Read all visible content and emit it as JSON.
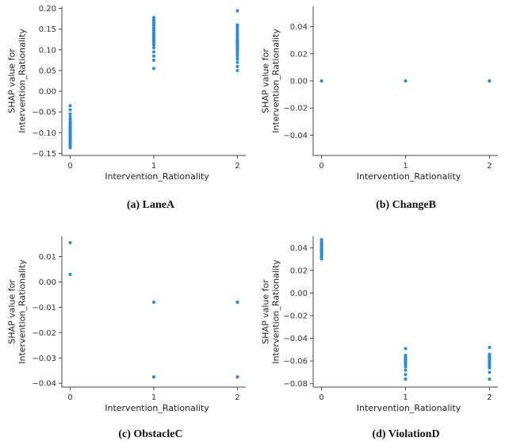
{
  "point_color": "#2b8cd6",
  "chart_data": [
    {
      "type": "scatter",
      "caption": "(a) LaneA",
      "xlabel": "Intervention_Rationality",
      "ylabel_lines": [
        "SHAP value for",
        "Intervention_Rationality"
      ],
      "xticks": [
        0,
        1,
        2
      ],
      "xlim": [
        -0.1,
        2.1
      ],
      "yticks": [
        -0.15,
        -0.1,
        -0.05,
        0.0,
        0.05,
        0.1,
        0.15,
        0.2
      ],
      "ytick_labels": [
        "−0.15",
        "−0.10",
        "−0.05",
        "0.00",
        "0.05",
        "0.10",
        "0.15",
        "0.20"
      ],
      "ylim": [
        -0.155,
        0.205
      ],
      "points": [
        {
          "x": 0,
          "y": [
            -0.035,
            -0.045,
            -0.055,
            -0.062,
            -0.068,
            -0.072,
            -0.076,
            -0.08,
            -0.083,
            -0.086,
            -0.089,
            -0.092,
            -0.095,
            -0.098,
            -0.1,
            -0.103,
            -0.106,
            -0.109,
            -0.112,
            -0.115,
            -0.118,
            -0.121,
            -0.124,
            -0.127,
            -0.13,
            -0.133,
            -0.136
          ]
        },
        {
          "x": 1,
          "y": [
            0.055,
            0.075,
            0.085,
            0.095,
            0.105,
            0.112,
            0.118,
            0.122,
            0.126,
            0.13,
            0.134,
            0.138,
            0.142,
            0.147,
            0.152,
            0.158,
            0.163,
            0.168,
            0.172,
            0.178
          ]
        },
        {
          "x": 2,
          "y": [
            0.05,
            0.06,
            0.07,
            0.078,
            0.085,
            0.09,
            0.095,
            0.1,
            0.104,
            0.108,
            0.112,
            0.116,
            0.12,
            0.124,
            0.128,
            0.132,
            0.136,
            0.14,
            0.145,
            0.15,
            0.155,
            0.16,
            0.194
          ]
        }
      ]
    },
    {
      "type": "scatter",
      "caption": "(b) ChangeB",
      "xlabel": "Intervention_Rationality",
      "ylabel_lines": [
        "SHAP value for",
        "Intervention_Rationality"
      ],
      "xticks": [
        0,
        1,
        2
      ],
      "xlim": [
        -0.1,
        2.1
      ],
      "yticks": [
        -0.04,
        -0.02,
        0.0,
        0.02,
        0.04
      ],
      "ytick_labels": [
        "−0.04",
        "−0.02",
        "0.00",
        "0.02",
        "0.04"
      ],
      "ylim": [
        -0.055,
        0.055
      ],
      "points": [
        {
          "x": 0,
          "y": [
            0.0
          ]
        },
        {
          "x": 1,
          "y": [
            0.0
          ]
        },
        {
          "x": 2,
          "y": [
            0.0
          ]
        }
      ]
    },
    {
      "type": "scatter",
      "caption": "(c) ObstacleC",
      "xlabel": "Intervention_Rationality",
      "ylabel_lines": [
        "SHAP value for",
        "Intervention_Rationality"
      ],
      "xticks": [
        0,
        1,
        2
      ],
      "xlim": [
        -0.1,
        2.1
      ],
      "yticks": [
        -0.04,
        -0.03,
        -0.02,
        -0.01,
        0.0,
        0.01
      ],
      "ytick_labels": [
        "−0.04",
        "−0.03",
        "−0.02",
        "−0.01",
        "0.00",
        "0.01"
      ],
      "ylim": [
        -0.0415,
        0.018
      ],
      "points": [
        {
          "x": 0,
          "y": [
            0.0155,
            0.003
          ]
        },
        {
          "x": 1,
          "y": [
            -0.008,
            -0.0375
          ]
        },
        {
          "x": 2,
          "y": [
            -0.008,
            -0.0375
          ]
        }
      ]
    },
    {
      "type": "scatter",
      "caption": "(d) ViolationD",
      "xlabel": "Intervention_Rationality",
      "ylabel_lines": [
        "SHAP value for",
        "Intervention_Rationality"
      ],
      "xticks": [
        0,
        1,
        2
      ],
      "xlim": [
        -0.1,
        2.1
      ],
      "yticks": [
        -0.08,
        -0.06,
        -0.04,
        -0.02,
        0.0,
        0.02,
        0.04
      ],
      "ytick_labels": [
        "−0.08",
        "−0.06",
        "−0.04",
        "−0.02",
        "0.00",
        "0.02",
        "0.04"
      ],
      "ylim": [
        -0.083,
        0.05
      ],
      "points": [
        {
          "x": 0,
          "y": [
            0.03,
            0.032,
            0.034,
            0.035,
            0.036,
            0.037,
            0.038,
            0.039,
            0.04,
            0.041,
            0.042,
            0.043,
            0.044,
            0.045,
            0.047
          ]
        },
        {
          "x": 1,
          "y": [
            -0.049,
            -0.055,
            -0.057,
            -0.058,
            -0.059,
            -0.06,
            -0.061,
            -0.062,
            -0.063,
            -0.065,
            -0.068,
            -0.072,
            -0.076
          ]
        },
        {
          "x": 2,
          "y": [
            -0.048,
            -0.054,
            -0.056,
            -0.057,
            -0.058,
            -0.059,
            -0.06,
            -0.061,
            -0.062,
            -0.063,
            -0.064,
            -0.065,
            -0.066,
            -0.07,
            -0.076
          ]
        }
      ]
    }
  ]
}
